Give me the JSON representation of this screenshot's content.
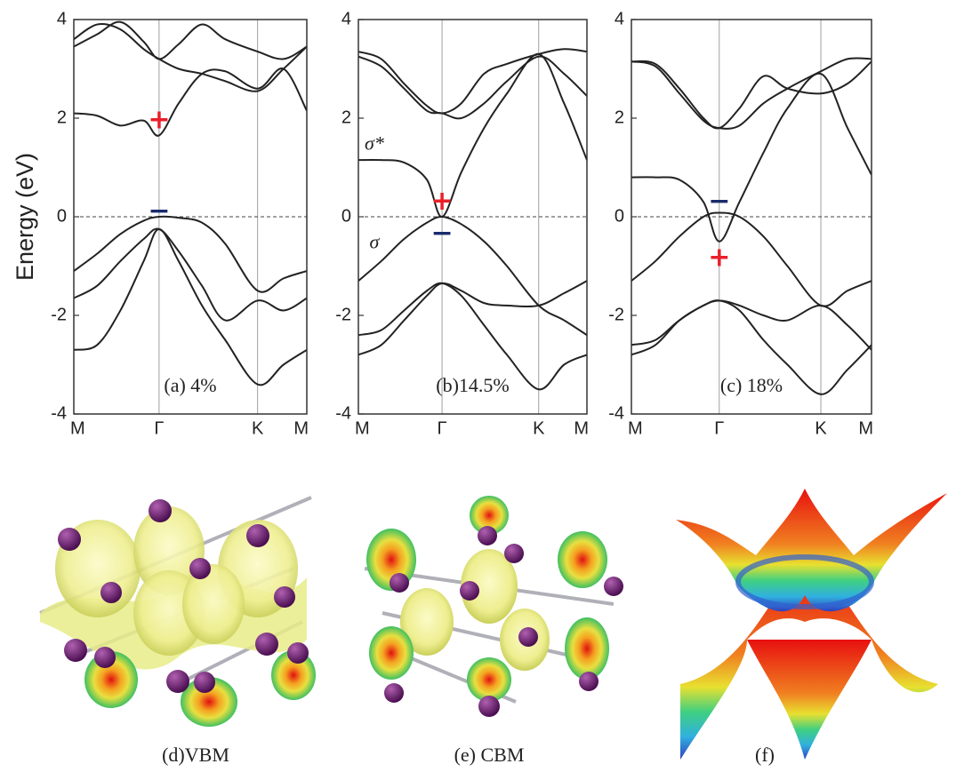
{
  "chart_data": [
    {
      "type": "line",
      "ylabel": "Energy (eV)",
      "caption": "(a) 4%",
      "x": [
        0,
        0.1,
        0.2,
        0.3,
        0.366,
        0.45,
        0.55,
        0.65,
        0.789,
        0.9,
        1
      ],
      "xlim": [
        0,
        1
      ],
      "xticks": [
        {
          "value": 0,
          "label": "M"
        },
        {
          "value": 0.366,
          "label": "Γ"
        },
        {
          "value": 0.789,
          "label": "K"
        },
        {
          "value": 1,
          "label": "M"
        }
      ],
      "ylim": [
        -4,
        4
      ],
      "yticks": [
        -4,
        -2,
        0,
        2,
        4
      ],
      "grid_x": true,
      "hline": {
        "y": 0,
        "style": "dashed"
      },
      "series": [
        {
          "color": "#222222",
          "values": [
            2.1,
            2.05,
            1.85,
            1.95,
            1.65,
            2.3,
            2.9,
            2.95,
            2.6,
            3.0,
            2.15
          ]
        },
        {
          "color": "#222222",
          "values": [
            3.45,
            3.7,
            3.95,
            3.55,
            3.2,
            3.5,
            3.9,
            3.6,
            3.35,
            3.2,
            3.45
          ]
        },
        {
          "color": "#222222",
          "values": [
            3.6,
            3.9,
            3.8,
            3.4,
            3.2,
            3.0,
            2.9,
            2.75,
            2.55,
            3.0,
            3.45
          ]
        },
        {
          "color": "#222222",
          "values": [
            -1.1,
            -0.75,
            -0.35,
            -0.08,
            0,
            -0.02,
            -0.12,
            -0.55,
            -1.5,
            -1.25,
            -1.1
          ]
        },
        {
          "color": "#222222",
          "values": [
            -1.65,
            -1.4,
            -0.9,
            -0.45,
            -0.25,
            -0.7,
            -1.4,
            -2.1,
            -1.7,
            -1.9,
            -1.65
          ]
        },
        {
          "color": "#222222",
          "values": [
            -2.7,
            -2.6,
            -1.9,
            -0.9,
            -0.25,
            -0.9,
            -1.8,
            -2.5,
            -3.4,
            -3.0,
            -2.7
          ]
        }
      ],
      "markers": [
        {
          "symbol": "+",
          "color": "#e8202a",
          "x": 0.366,
          "y": 1.95
        },
        {
          "symbol": "−",
          "color": "#1a2a6c",
          "x": 0.366,
          "y": 0.1
        }
      ]
    },
    {
      "type": "line",
      "caption": "(b)14.5%",
      "band_labels": [
        "σ*",
        "σ"
      ],
      "x": [
        0,
        0.1,
        0.2,
        0.3,
        0.366,
        0.45,
        0.55,
        0.65,
        0.789,
        0.9,
        1
      ],
      "xlim": [
        0,
        1
      ],
      "xticks": [
        {
          "value": 0,
          "label": "M"
        },
        {
          "value": 0.366,
          "label": "Γ"
        },
        {
          "value": 0.789,
          "label": "K"
        },
        {
          "value": 1,
          "label": "M"
        }
      ],
      "ylim": [
        -4,
        4
      ],
      "yticks": [
        -4,
        -2,
        0,
        2,
        4
      ],
      "grid_x": true,
      "hline": {
        "y": 0,
        "style": "dashed"
      },
      "series": [
        {
          "color": "#222222",
          "values": [
            3.35,
            3.2,
            2.7,
            2.25,
            2.1,
            2.3,
            2.9,
            3.1,
            3.3,
            3.4,
            3.35
          ]
        },
        {
          "color": "#222222",
          "values": [
            3.25,
            3.05,
            2.6,
            2.15,
            2.1,
            2.0,
            2.3,
            2.75,
            3.25,
            2.9,
            2.45
          ]
        },
        {
          "color": "#222222",
          "values": [
            1.15,
            1.15,
            1.1,
            0.75,
            0,
            0.9,
            1.8,
            2.5,
            3.3,
            2.3,
            1.15
          ]
        },
        {
          "color": "#222222",
          "values": [
            -1.3,
            -0.9,
            -0.45,
            -0.12,
            0,
            -0.15,
            -0.5,
            -1.0,
            -1.8,
            -2.1,
            -2.4
          ]
        },
        {
          "color": "#222222",
          "values": [
            -2.4,
            -2.3,
            -1.9,
            -1.5,
            -1.35,
            -1.6,
            -2.2,
            -2.8,
            -3.5,
            -3.0,
            -2.8
          ]
        },
        {
          "color": "#222222",
          "values": [
            -2.8,
            -2.6,
            -2.1,
            -1.6,
            -1.35,
            -1.5,
            -1.75,
            -1.8,
            -1.8,
            -1.55,
            -1.3
          ]
        }
      ],
      "markers": [
        {
          "symbol": "+",
          "color": "#e8202a",
          "x": 0.366,
          "y": 0.3
        },
        {
          "symbol": "−",
          "color": "#1a2a6c",
          "x": 0.366,
          "y": -0.35
        }
      ]
    },
    {
      "type": "line",
      "caption": "(c) 18%",
      "x": [
        0,
        0.1,
        0.2,
        0.3,
        0.366,
        0.45,
        0.55,
        0.65,
        0.789,
        0.9,
        1
      ],
      "xlim": [
        0,
        1
      ],
      "xticks": [
        {
          "value": 0,
          "label": "M"
        },
        {
          "value": 0.366,
          "label": "Γ"
        },
        {
          "value": 0.789,
          "label": "K"
        },
        {
          "value": 1,
          "label": "M"
        }
      ],
      "ylim": [
        -4,
        4
      ],
      "yticks": [
        -4,
        -2,
        0,
        2,
        4
      ],
      "grid_x": true,
      "hline": {
        "y": 0,
        "style": "dashed"
      },
      "series": [
        {
          "color": "#222222",
          "values": [
            3.15,
            3.1,
            2.6,
            2.0,
            1.8,
            2.2,
            2.85,
            2.6,
            2.5,
            2.7,
            3.15
          ]
        },
        {
          "color": "#222222",
          "values": [
            3.15,
            3.05,
            2.5,
            1.95,
            1.8,
            1.85,
            2.3,
            2.6,
            2.95,
            3.2,
            3.2
          ]
        },
        {
          "color": "#222222",
          "values": [
            0.8,
            0.8,
            0.75,
            0.3,
            -0.5,
            0.3,
            1.3,
            2.2,
            2.9,
            1.8,
            0.85
          ]
        },
        {
          "color": "#222222",
          "values": [
            -1.3,
            -0.9,
            -0.4,
            0,
            0.08,
            0,
            -0.4,
            -1.0,
            -1.8,
            -1.5,
            -1.3
          ]
        },
        {
          "color": "#222222",
          "values": [
            -2.6,
            -2.5,
            -2.1,
            -1.8,
            -1.7,
            -1.9,
            -2.5,
            -3.0,
            -3.6,
            -3.1,
            -2.6
          ]
        },
        {
          "color": "#222222",
          "values": [
            -2.8,
            -2.6,
            -2.1,
            -1.8,
            -1.7,
            -1.8,
            -2.0,
            -2.1,
            -1.8,
            -2.2,
            -2.7
          ]
        }
      ],
      "markers": [
        {
          "symbol": "−",
          "color": "#1a2a6c",
          "x": 0.366,
          "y": 0.3
        },
        {
          "symbol": "+",
          "color": "#e8202a",
          "x": 0.366,
          "y": -0.85
        }
      ]
    }
  ],
  "images": [
    {
      "caption": "(d)VBM"
    },
    {
      "caption": "(e) CBM"
    },
    {
      "caption": "(f)"
    }
  ]
}
